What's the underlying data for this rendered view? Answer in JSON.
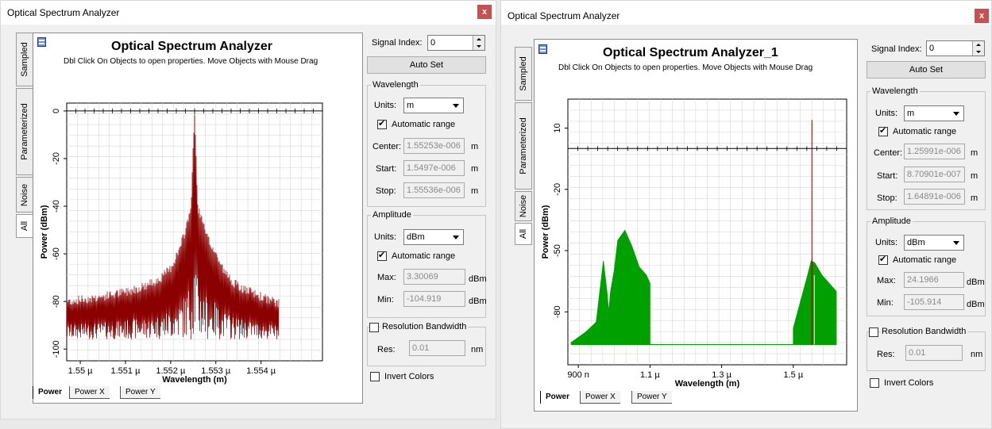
{
  "windows": [
    {
      "title": "Optical Spectrum Analyzer",
      "close_label": "x",
      "side_tabs": [
        "Sampled",
        "Parameterized",
        "Noise",
        "All"
      ],
      "plot_title": "Optical Spectrum Analyzer",
      "plot_hint": "Dbl Click On Objects to open properties.  Move Objects with Mouse Drag",
      "bottom_tabs": [
        "Power",
        "Power X",
        "Power Y"
      ],
      "signal_index_label": "Signal Index:",
      "signal_index_value": "0",
      "auto_set_label": "Auto Set",
      "wavelength": {
        "group_label": "Wavelength",
        "units_label": "Units:",
        "units_value": "m",
        "auto_range_label": "Automatic range",
        "auto_range_checked": true,
        "center_label": "Center:",
        "center_value": "1.55253e-006",
        "center_unit": "m",
        "start_label": "Start:",
        "start_value": "1.5497e-006",
        "start_unit": "m",
        "stop_label": "Stop:",
        "stop_value": "1.55536e-006",
        "stop_unit": "m"
      },
      "amplitude": {
        "group_label": "Amplitude",
        "units_label": "Units:",
        "units_value": "dBm",
        "auto_range_label": "Automatic range",
        "auto_range_checked": true,
        "max_label": "Max:",
        "max_value": "3.30069",
        "max_unit": "dBm",
        "min_label": "Min:",
        "min_value": "-104.919",
        "min_unit": "dBm"
      },
      "resolution": {
        "group_label": "Resolution Bandwidth",
        "checked": false,
        "res_label": "Res:",
        "res_value": "0.01",
        "res_unit": "nm"
      },
      "invert_colors_label": "Invert Colors",
      "invert_colors_checked": false,
      "chart_data": {
        "type": "line",
        "xlabel": "Wavelength (m)",
        "ylabel": "Power (dBm)",
        "xlim": [
          1.5497,
          1.55536
        ],
        "ylim": [
          -104.919,
          3.30069
        ],
        "x_ticks": [
          1.55,
          1.551,
          1.552,
          1.553,
          1.554
        ],
        "x_tick_labels": [
          "1.55 µ",
          "1.551 µ",
          "1.552 µ",
          "1.553 µ",
          "1.554 µ"
        ],
        "y_ticks": [
          0,
          -20,
          -40,
          -60,
          -80,
          -100
        ],
        "y_tick_labels": [
          "0",
          "-20",
          "-40",
          "-60",
          "-80",
          "-100"
        ],
        "grid": true,
        "series_color": "#8b0000",
        "series": [
          {
            "x": [
              1.5497,
              1.5505,
              1.551,
              1.5515,
              1.5518,
              1.552,
              1.5522,
              1.5523,
              1.55245,
              1.55253,
              1.5526,
              1.5528,
              1.553,
              1.5532,
              1.5535,
              1.554,
              1.5544
            ],
            "y": [
              -82,
              -80,
              -78,
              -75,
              -72,
              -68,
              -60,
              -54,
              -42,
              -2,
              -42,
              -55,
              -62,
              -70,
              -76,
              -80,
              -83
            ],
            "noise_floor": -96
          }
        ],
        "reference_line_y": 0
      }
    },
    {
      "title": "Optical Spectrum Analyzer",
      "close_label": "x",
      "side_tabs": [
        "Sampled",
        "Parameterized",
        "Noise",
        "All"
      ],
      "plot_title": "Optical Spectrum Analyzer_1",
      "plot_hint": "Dbl Click On Objects to open properties.  Move Objects with Mouse Drag",
      "bottom_tabs": [
        "Power",
        "Power X",
        "Power Y"
      ],
      "signal_index_label": "Signal Index:",
      "signal_index_value": "0",
      "auto_set_label": "Auto Set",
      "wavelength": {
        "group_label": "Wavelength",
        "units_label": "Units:",
        "units_value": "m",
        "auto_range_label": "Automatic range",
        "auto_range_checked": true,
        "center_label": "Center:",
        "center_value": "1.25991e-006",
        "center_unit": "m",
        "start_label": "Start:",
        "start_value": "8.70901e-007",
        "start_unit": "m",
        "stop_label": "Stop:",
        "stop_value": "1.64891e-006",
        "stop_unit": "m"
      },
      "amplitude": {
        "group_label": "Amplitude",
        "units_label": "Units:",
        "units_value": "dBm",
        "auto_range_label": "Automatic range",
        "auto_range_checked": true,
        "max_label": "Max:",
        "max_value": "24.1966",
        "max_unit": "dBm",
        "min_label": "Min:",
        "min_value": "-105.914",
        "min_unit": "dBm"
      },
      "resolution": {
        "group_label": "Resolution Bandwidth",
        "checked": false,
        "res_label": "Res:",
        "res_value": "0.01",
        "res_unit": "nm"
      },
      "invert_colors_label": "Invert Colors",
      "invert_colors_checked": false,
      "chart_data": {
        "type": "area",
        "xlabel": "Wavelength (m)",
        "ylabel": "Power (dBm)",
        "xlim": [
          0.870901,
          1.64891
        ],
        "ylim": [
          -105.914,
          24.1966
        ],
        "x_ticks": [
          0.9,
          1.1,
          1.3,
          1.5
        ],
        "x_tick_labels": [
          "900 n",
          "1.1 µ",
          "1.3 µ",
          "1.5 µ"
        ],
        "y_ticks": [
          10,
          -20,
          -50,
          -80
        ],
        "y_tick_labels": [
          "10",
          "-20",
          "-50",
          "-80"
        ],
        "grid": true,
        "series_color": "#00a000",
        "series": [
          {
            "x": [
              0.88,
              0.92,
              0.95,
              0.97,
              0.98,
              0.985,
              0.99,
              1.0,
              1.01,
              1.03,
              1.05,
              1.07,
              1.09,
              1.1
            ],
            "y": [
              -95,
              -90,
              -85,
              -55,
              -70,
              -80,
              -70,
              -60,
              -45,
              -40,
              -48,
              -58,
              -62,
              -66
            ],
            "floor": -96
          },
          {
            "x": [
              1.5,
              1.52,
              1.54,
              1.55,
              1.56,
              1.58,
              1.6,
              1.62
            ],
            "y": [
              -88,
              -75,
              -62,
              -55,
              -56,
              -62,
              -66,
              -70
            ],
            "floor": -96
          }
        ],
        "baseline_y": -96,
        "peak": {
          "x": 1.552,
          "y": 14,
          "color": "#8b0000"
        },
        "reference_line_y": 0
      }
    }
  ]
}
